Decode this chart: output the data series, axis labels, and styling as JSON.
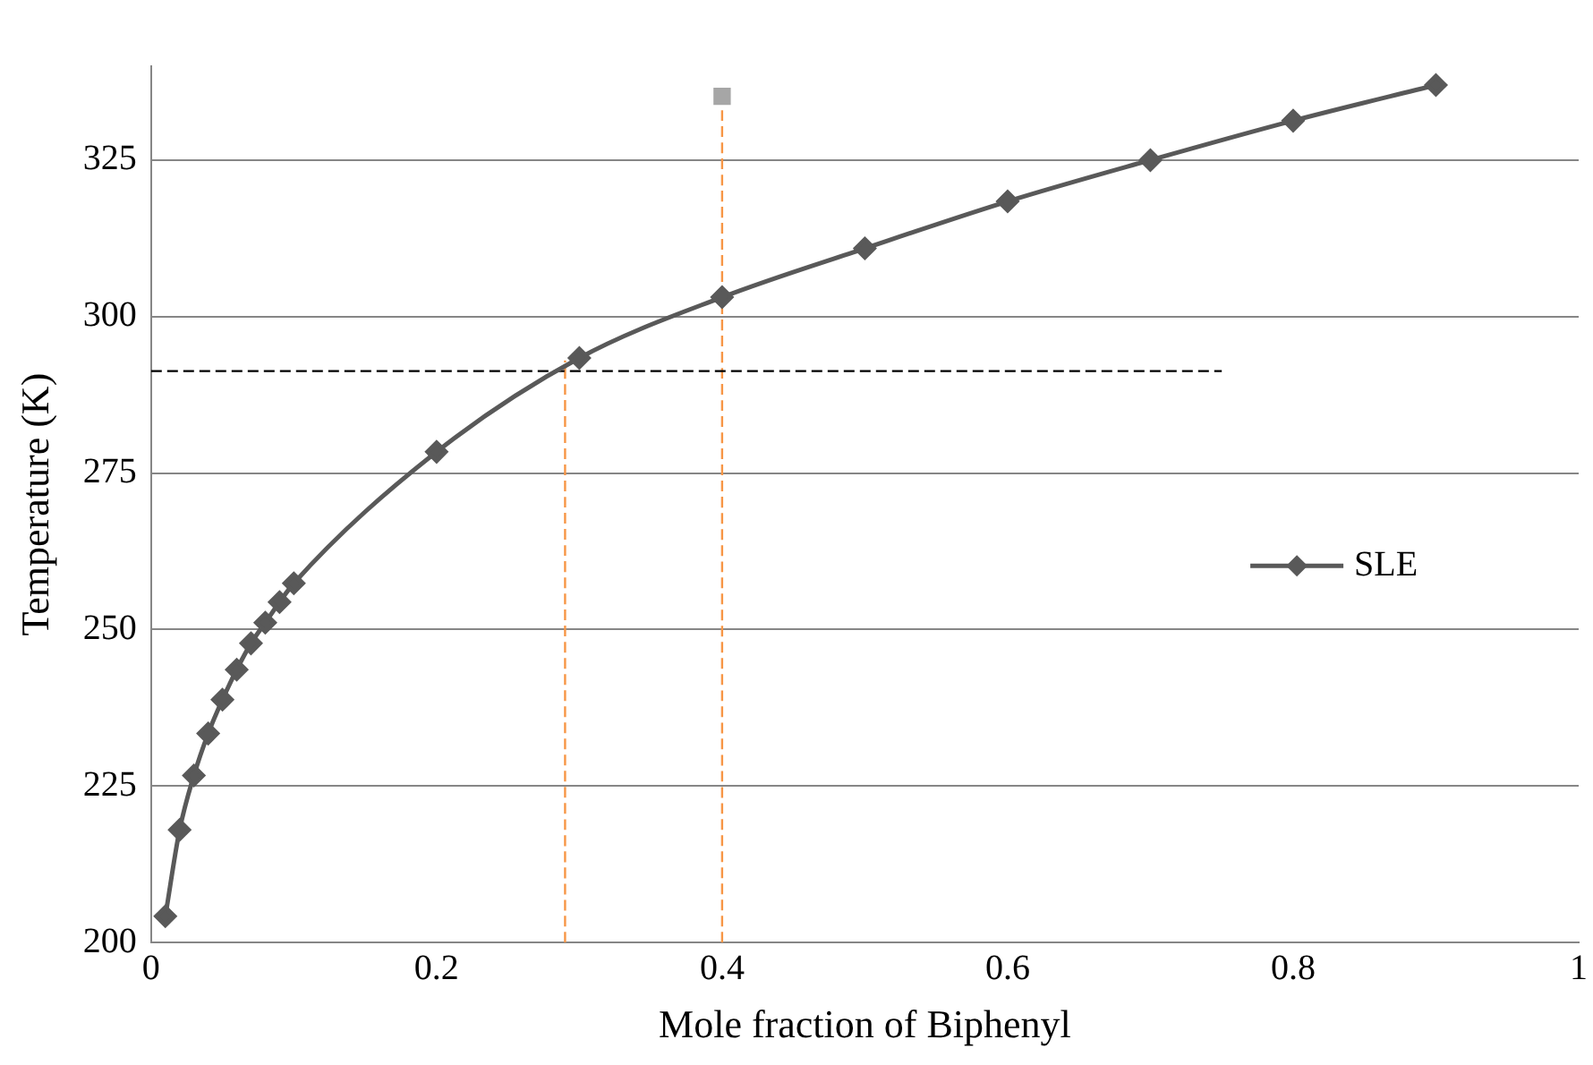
{
  "chart_data": {
    "type": "line",
    "xlabel": "Mole fraction of Biphenyl",
    "ylabel": "Temperature (K)",
    "xlim": [
      0,
      1
    ],
    "xticks": [
      0,
      0.2,
      0.4,
      0.6,
      0.8,
      1
    ],
    "ylim": [
      200,
      340
    ],
    "yticks": [
      200,
      225,
      250,
      275,
      300,
      325
    ],
    "grid": "y",
    "legend": "right",
    "series": [
      {
        "name": "SLE",
        "type": "line",
        "color": "#595959",
        "marker": "diamond",
        "line_style": "solid",
        "x": [
          0.01,
          0.02,
          0.03,
          0.04,
          0.05,
          0.06,
          0.07,
          0.08,
          0.09,
          0.1,
          0.2,
          0.3,
          0.4,
          0.5,
          0.6,
          0.7,
          0.8,
          0.9
        ],
        "values": [
          204.2,
          218,
          226.7,
          233.4,
          238.8,
          243.6,
          247.8,
          251.1,
          254.4,
          257.4,
          278.4,
          293.4,
          303.1,
          310.9,
          318.4,
          325,
          331.3,
          337
        ]
      },
      {
        "type": "scatter",
        "color": "#a6a6a6",
        "marker": "square",
        "x": [
          0.4
        ],
        "values": [
          335.2
        ]
      },
      {
        "type": "line",
        "color": "#000000",
        "marker": "none",
        "line_style": "dashed",
        "x": [
          0,
          0.75
        ],
        "values": [
          291.3,
          291.3
        ]
      },
      {
        "type": "line",
        "color": "#f79646",
        "marker": "none",
        "line_style": "dashed",
        "x": [
          0.29,
          0.29
        ],
        "values": [
          200,
          293
        ]
      },
      {
        "type": "line",
        "color": "#f79646",
        "marker": "none",
        "line_style": "dashed",
        "x": [
          0.4,
          0.4
        ],
        "values": [
          200,
          335.2
        ]
      }
    ]
  }
}
